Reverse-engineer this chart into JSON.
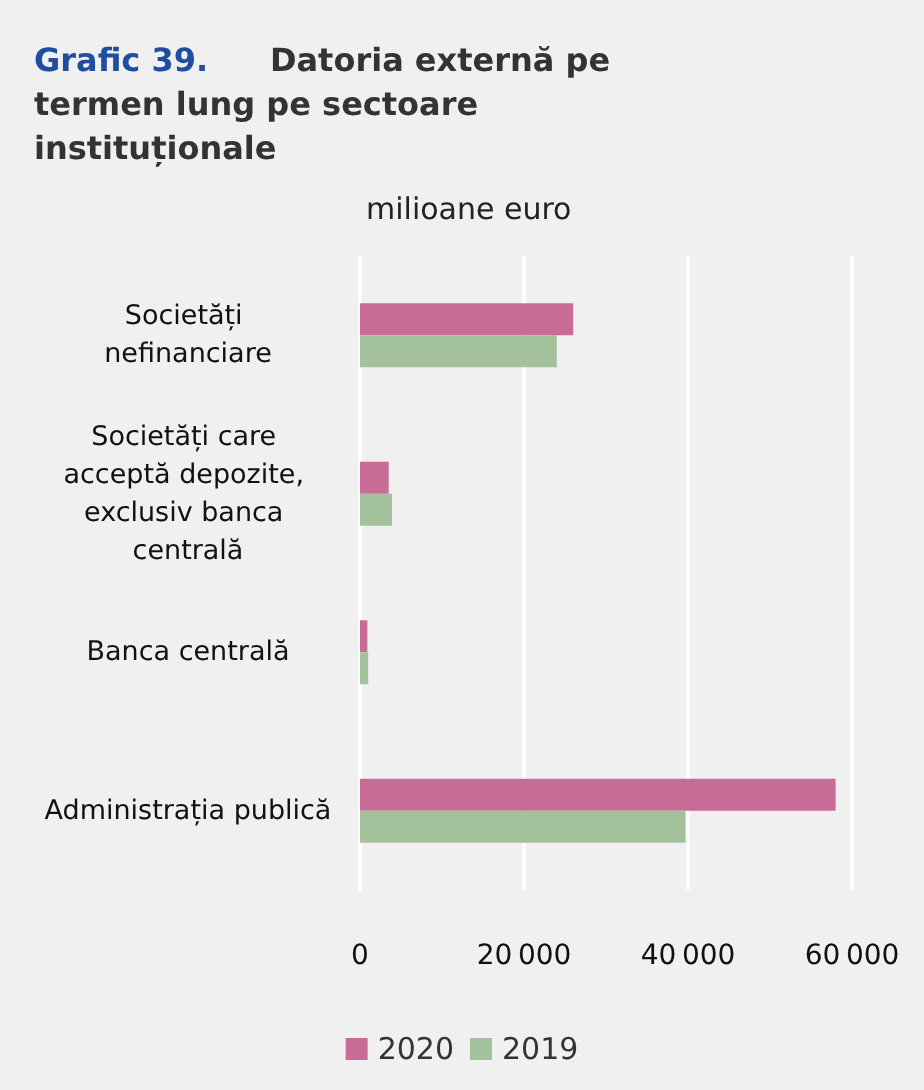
{
  "chart_data": {
    "type": "bar",
    "orientation": "horizontal",
    "title": "Grafic 39. Datoria externă pe termen lung pe sectoare instituționale",
    "xlabel": "milioane euro",
    "categories": [
      "Societăți nefinanciare",
      "Societăți care acceptă depozite, exclusiv banca centrală",
      "Banca centrală",
      "Administrația publică"
    ],
    "series": [
      {
        "name": "2020",
        "color": "#c96b97",
        "values": [
          26000,
          3500,
          900,
          58000
        ]
      },
      {
        "name": "2019",
        "color": "#a3c19b",
        "values": [
          24000,
          3900,
          1000,
          39700
        ]
      }
    ],
    "xlim": [
      0,
      60000
    ],
    "xticks": [
      0,
      20000,
      40000,
      60000
    ],
    "grid": "x",
    "legend": "bottom"
  }
}
